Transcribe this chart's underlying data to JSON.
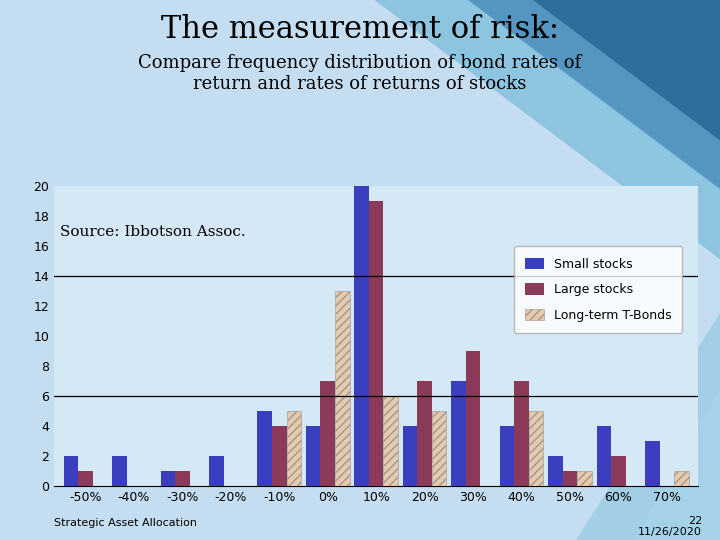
{
  "title": "The measurement of risk:",
  "subtitle": "Compare frequency distribution of bond rates of\nreturn and rates of returns of stocks",
  "source_text": "Source: Ibbotson Assoc.",
  "footer_left": "Strategic Asset Allocation",
  "footer_right_line1": "22",
  "footer_right_line2": "11/26/2020",
  "categories": [
    "-50%",
    "-40%",
    "-30%",
    "-20%",
    "-10%",
    "0%",
    "10%",
    "20%",
    "30%",
    "40%",
    "50%",
    "60%",
    "70%"
  ],
  "small_stocks": [
    2,
    2,
    1,
    2,
    5,
    4,
    20,
    4,
    7,
    4,
    2,
    4,
    3
  ],
  "large_stocks": [
    1,
    0,
    1,
    0,
    4,
    7,
    19,
    7,
    9,
    7,
    1,
    2,
    0
  ],
  "tbonds": [
    0,
    0,
    0,
    0,
    5,
    13,
    6,
    5,
    0,
    5,
    1,
    0,
    1
  ],
  "color_small": "#3B3FBF",
  "color_large": "#8B3A5A",
  "color_tbonds_face": "#E8CAAA",
  "color_tbonds_hatch": "#999999",
  "ylim": [
    0,
    20
  ],
  "yticks": [
    0,
    2,
    4,
    6,
    8,
    10,
    12,
    14,
    16,
    18,
    20
  ],
  "hlines": [
    6,
    14
  ],
  "bg_color": "#C5DDF0",
  "plot_bg_color": "#D5E8F5",
  "legend_labels": [
    "Small stocks",
    "Large stocks",
    "Long-term T-Bonds"
  ],
  "title_fontsize": 22,
  "subtitle_fontsize": 13,
  "source_fontsize": 11
}
